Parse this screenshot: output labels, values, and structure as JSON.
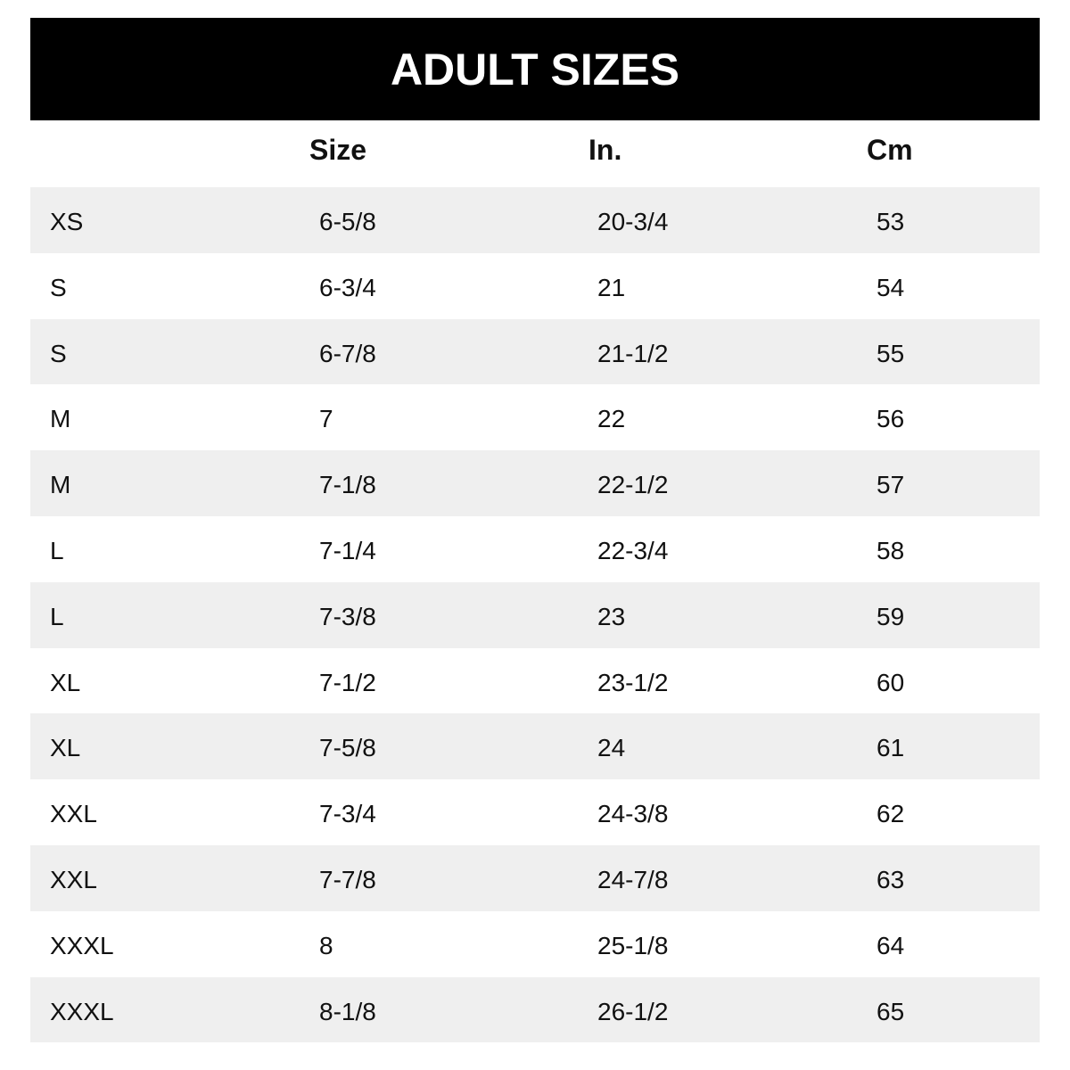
{
  "title": "ADULT SIZES",
  "columns": [
    "",
    "Size",
    "In.",
    "Cm"
  ],
  "rows": [
    [
      "XS",
      "6-5/8",
      "20-3/4",
      "53"
    ],
    [
      "S",
      "6-3/4",
      "21",
      "54"
    ],
    [
      "S",
      "6-7/8",
      "21-1/2",
      "55"
    ],
    [
      "M",
      "7",
      "22",
      "56"
    ],
    [
      "M",
      "7-1/8",
      "22-1/2",
      "57"
    ],
    [
      "L",
      "7-1/4",
      "22-3/4",
      "58"
    ],
    [
      "L",
      "7-3/8",
      "23",
      "59"
    ],
    [
      "XL",
      "7-1/2",
      "23-1/2",
      "60"
    ],
    [
      "XL",
      "7-5/8",
      "24",
      "61"
    ],
    [
      "XXL",
      "7-3/4",
      "24-3/8",
      "62"
    ],
    [
      "XXL",
      "7-7/8",
      "24-7/8",
      "63"
    ],
    [
      "XXXL",
      "8",
      "25-1/8",
      "64"
    ],
    [
      "XXXL",
      "8-1/8",
      "26-1/2",
      "65"
    ]
  ],
  "colors": {
    "banner": "#000000",
    "stripe": "#efefef"
  }
}
